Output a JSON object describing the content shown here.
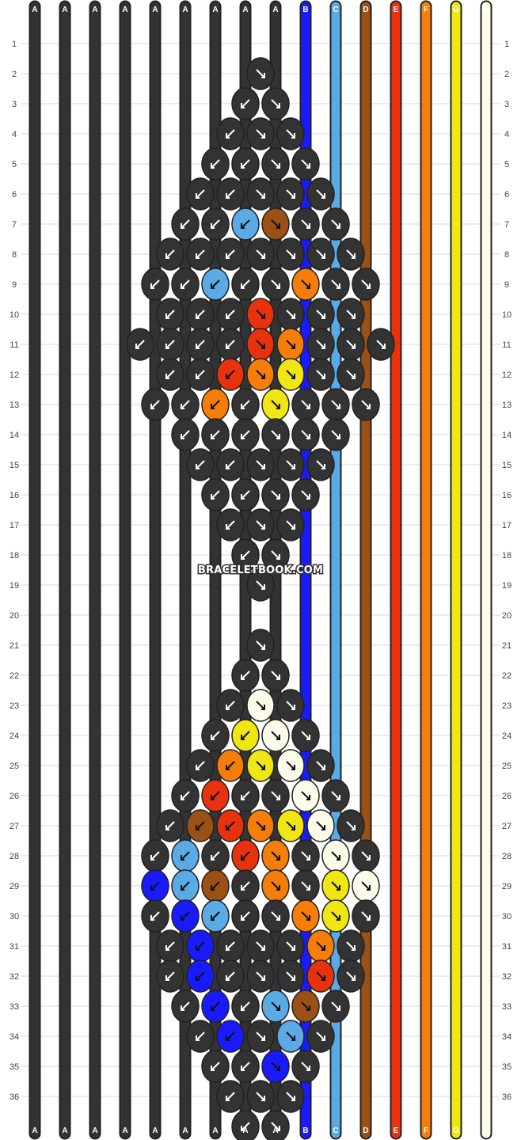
{
  "watermark": "BRACELETBOOK.COM",
  "rows": 36,
  "strings": [
    "A",
    "A",
    "A",
    "A",
    "A",
    "A",
    "A",
    "A",
    "A",
    "B",
    "C",
    "D",
    "E",
    "F",
    "G",
    "H"
  ],
  "colors": {
    "A": "#333333",
    "B": "#1a1aff",
    "C": "#5aaae6",
    "D": "#9b5016",
    "E": "#e8320d",
    "F": "#f57d0a",
    "G": "#f0e614",
    "H": "#fdfbea"
  },
  "knot_rows": [
    [
      "A"
    ],
    [
      "A",
      "A"
    ],
    [
      "A",
      "A",
      "A"
    ],
    [
      "A",
      "A",
      "A",
      "A"
    ],
    [
      "A",
      "A",
      "A",
      "A",
      "A"
    ],
    [
      "A",
      "A",
      "C",
      "D",
      "A",
      "A"
    ],
    [
      "A",
      "A",
      "A",
      "A",
      "A",
      "A",
      "A"
    ],
    [
      "A",
      "A",
      "C",
      "A",
      "A",
      "F",
      "A",
      "A"
    ],
    [
      "A",
      "A",
      "A",
      "E",
      "A",
      "A",
      "A"
    ],
    [
      "A",
      "A",
      "A",
      "A",
      "E",
      "F",
      "A",
      "A",
      "A"
    ],
    [
      "A",
      "A",
      "E",
      "F",
      "G",
      "A",
      "A"
    ],
    [
      "A",
      "A",
      "F",
      "A",
      "G",
      "A",
      "A",
      "A"
    ],
    [
      "A",
      "A",
      "A",
      "A",
      "A",
      "A"
    ],
    [
      "A",
      "A",
      "A",
      "A",
      "A"
    ],
    [
      "A",
      "A",
      "A",
      "A"
    ],
    [
      "A",
      "A",
      "A"
    ],
    [
      "A",
      "A"
    ],
    [
      "A"
    ],
    [],
    [
      "A"
    ],
    [
      "A",
      "A"
    ],
    [
      "A",
      "H",
      "A"
    ],
    [
      "A",
      "G",
      "H",
      "A"
    ],
    [
      "A",
      "F",
      "G",
      "H",
      "A"
    ],
    [
      "A",
      "E",
      "A",
      "A",
      "H",
      "A"
    ],
    [
      "A",
      "D",
      "E",
      "F",
      "G",
      "H",
      "A"
    ],
    [
      "A",
      "C",
      "A",
      "E",
      "F",
      "A",
      "H",
      "A"
    ],
    [
      "B",
      "C",
      "D",
      "A",
      "F",
      "A",
      "G",
      "H"
    ],
    [
      "A",
      "B",
      "C",
      "A",
      "A",
      "F",
      "G",
      "A"
    ],
    [
      "A",
      "B",
      "A",
      "A",
      "A",
      "F",
      "A"
    ],
    [
      "A",
      "B",
      "A",
      "A",
      "A",
      "E",
      "A"
    ],
    [
      "A",
      "B",
      "A",
      "C",
      "D",
      "A"
    ],
    [
      "A",
      "B",
      "A",
      "C",
      "A"
    ],
    [
      "A",
      "A",
      "B",
      "A"
    ],
    [
      "A",
      "A",
      "A"
    ],
    [
      "A",
      "A"
    ]
  ]
}
